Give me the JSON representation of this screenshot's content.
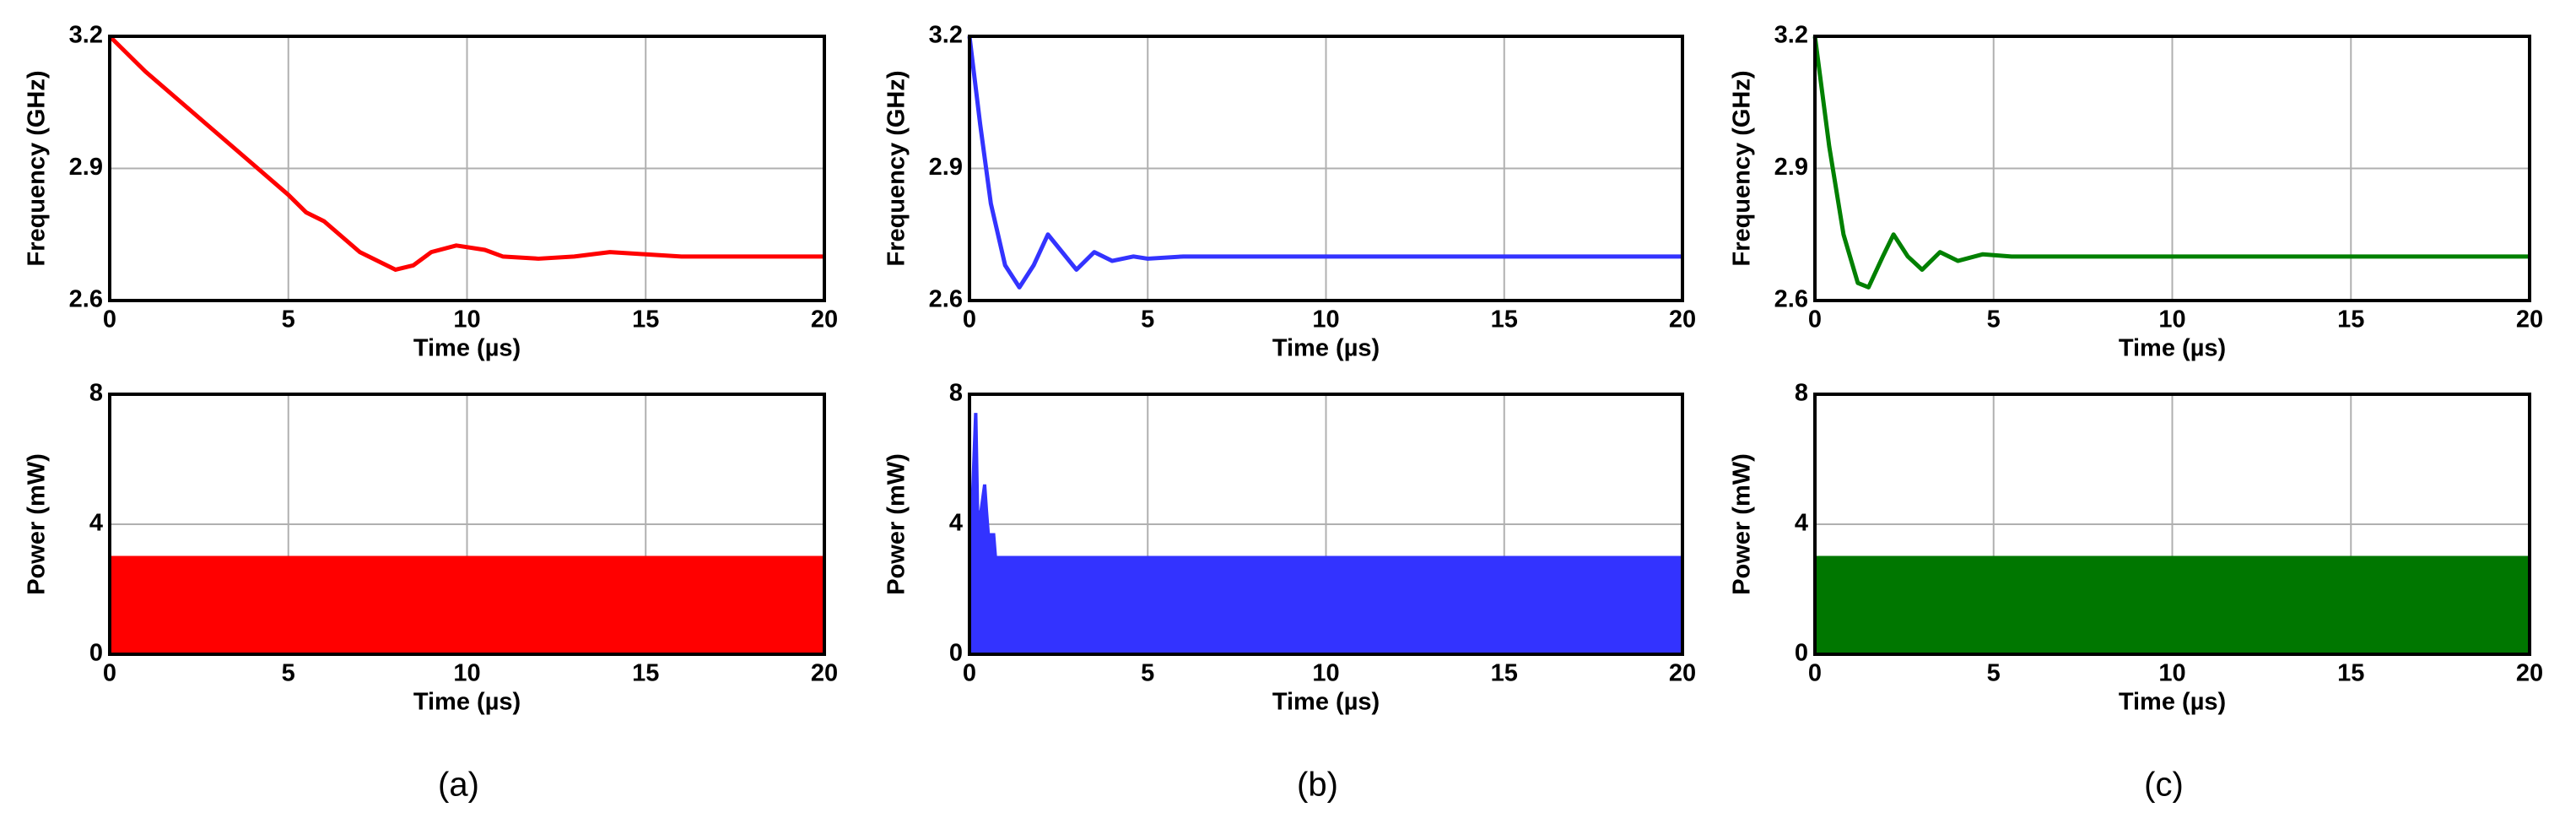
{
  "chart_data": [
    {
      "type": "line",
      "xlabel": "Time (µs)",
      "ylabel": "Frequency (GHz)",
      "xlim": [
        0,
        20
      ],
      "ylim": [
        2.6,
        3.2
      ],
      "xticks": [
        0,
        5,
        10,
        15,
        20
      ],
      "yticks": [
        2.6,
        2.9,
        3.2
      ],
      "grid": true,
      "series": [
        {
          "color": "#ff0000",
          "x": [
            0,
            1,
            2,
            3,
            4,
            5,
            5.5,
            6,
            7,
            8,
            8.5,
            9,
            9.7,
            10.5,
            11,
            12,
            13,
            14,
            15,
            16,
            18,
            20
          ],
          "values": [
            3.2,
            3.12,
            3.05,
            2.98,
            2.91,
            2.84,
            2.8,
            2.78,
            2.71,
            2.67,
            2.68,
            2.71,
            2.725,
            2.715,
            2.7,
            2.695,
            2.7,
            2.71,
            2.705,
            2.7,
            2.7,
            2.7
          ]
        }
      ]
    },
    {
      "type": "line",
      "xlabel": "Time (µs)",
      "ylabel": "Frequency (GHz)",
      "xlim": [
        0,
        20
      ],
      "ylim": [
        2.6,
        3.2
      ],
      "xticks": [
        0,
        5,
        10,
        15,
        20
      ],
      "yticks": [
        2.6,
        2.9,
        3.2
      ],
      "grid": true,
      "series": [
        {
          "color": "#3333ff",
          "x": [
            0,
            0.3,
            0.6,
            1,
            1.4,
            1.8,
            2.2,
            2.6,
            3,
            3.5,
            4,
            4.6,
            5,
            6,
            20
          ],
          "values": [
            3.2,
            3.0,
            2.82,
            2.68,
            2.63,
            2.68,
            2.75,
            2.71,
            2.67,
            2.71,
            2.69,
            2.7,
            2.695,
            2.7,
            2.7
          ]
        }
      ]
    },
    {
      "type": "line",
      "xlabel": "Time (µs)",
      "ylabel": "Frequency (GHz)",
      "xlim": [
        0,
        20
      ],
      "ylim": [
        2.6,
        3.2
      ],
      "xticks": [
        0,
        5,
        10,
        15,
        20
      ],
      "yticks": [
        2.6,
        2.9,
        3.2
      ],
      "grid": true,
      "series": [
        {
          "color": "#008000",
          "x": [
            0,
            0.4,
            0.8,
            1.2,
            1.5,
            1.9,
            2.2,
            2.6,
            3,
            3.5,
            4,
            4.7,
            5.5,
            20
          ],
          "values": [
            3.2,
            2.95,
            2.75,
            2.64,
            2.63,
            2.7,
            2.75,
            2.7,
            2.67,
            2.71,
            2.69,
            2.705,
            2.7,
            2.7
          ]
        }
      ]
    },
    {
      "type": "area",
      "xlabel": "Time (µs)",
      "ylabel": "Power (mW)",
      "xlim": [
        0,
        20
      ],
      "ylim": [
        0,
        8
      ],
      "xticks": [
        0,
        5,
        10,
        15,
        20
      ],
      "yticks": [
        0,
        4,
        8
      ],
      "grid": true,
      "series": [
        {
          "color": "#ff0000",
          "x": [
            0,
            20
          ],
          "values": [
            3,
            3
          ]
        }
      ]
    },
    {
      "type": "area",
      "xlabel": "Time (µs)",
      "ylabel": "Power (mW)",
      "xlim": [
        0,
        20
      ],
      "ylim": [
        0,
        8
      ],
      "xticks": [
        0,
        5,
        10,
        15,
        20
      ],
      "yticks": [
        0,
        4,
        8
      ],
      "grid": true,
      "series": [
        {
          "color": "#3333ff",
          "x": [
            0,
            0.15,
            0.2,
            0.25,
            0.3,
            0.4,
            0.45,
            0.5,
            0.55,
            0.6,
            0.7,
            0.75,
            20
          ],
          "values": [
            3,
            7.4,
            7.4,
            4.4,
            4.4,
            5.2,
            5.2,
            4.4,
            3.7,
            3.7,
            3.7,
            3,
            3
          ]
        }
      ]
    },
    {
      "type": "area",
      "xlabel": "Time (µs)",
      "ylabel": "Power (mW)",
      "xlim": [
        0,
        20
      ],
      "ylim": [
        0,
        8
      ],
      "xticks": [
        0,
        5,
        10,
        15,
        20
      ],
      "yticks": [
        0,
        4,
        8
      ],
      "grid": true,
      "series": [
        {
          "color": "#007700",
          "x": [
            0,
            20
          ],
          "values": [
            3,
            3
          ]
        }
      ]
    }
  ],
  "captions": [
    "(a)",
    "(b)",
    "(c)"
  ]
}
